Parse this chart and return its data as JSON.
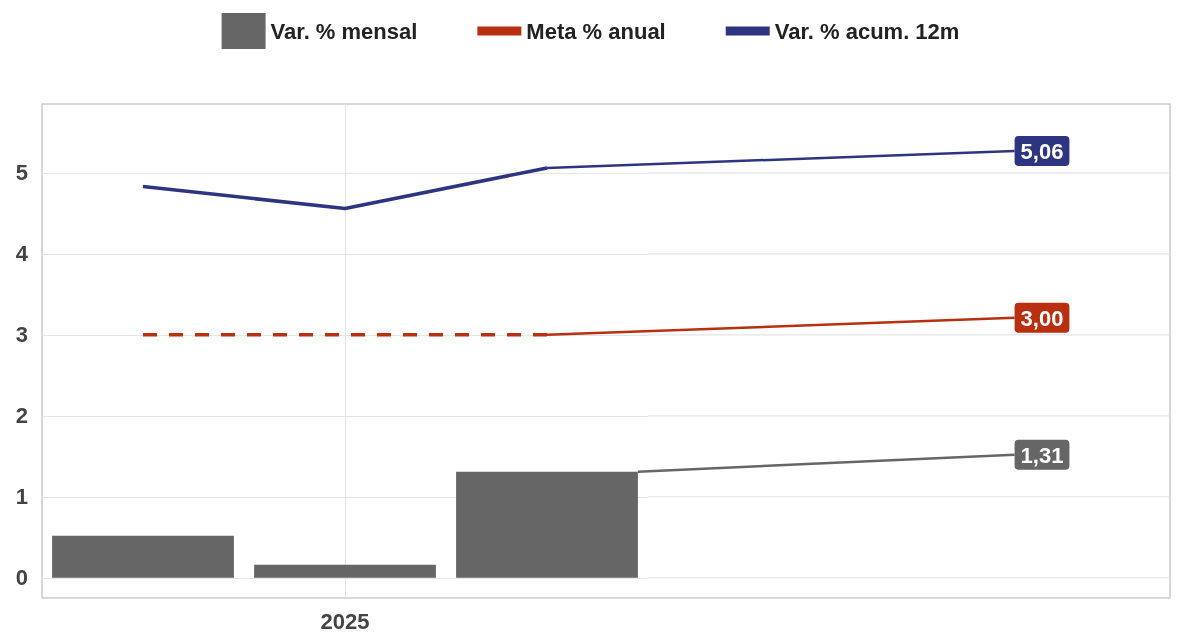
{
  "chart_data": {
    "type": "bar",
    "categories": [
      null,
      "2025",
      null
    ],
    "series": [
      {
        "name": "Var. % mensal",
        "color": "#666666",
        "values": [
          0.52,
          0.16,
          1.31
        ],
        "value_labels": [
          null,
          null,
          "1,31"
        ]
      },
      {
        "name": "Meta % anual",
        "type": "line",
        "color": "#b83010",
        "line_style": "dashed",
        "values": [
          3.0,
          3.0,
          3.0
        ],
        "value_labels": [
          null,
          null,
          "3,00"
        ]
      },
      {
        "name": "Var. % acum. 12m",
        "type": "line",
        "color": "#2e3580",
        "line_style": "solid",
        "values": [
          4.83,
          4.56,
          5.06
        ],
        "value_labels": [
          null,
          null,
          "5,06"
        ]
      }
    ],
    "ylim": [
      -0.25,
      5.85
    ],
    "yticks": [
      0,
      1,
      2,
      3,
      4,
      5
    ],
    "grid": true,
    "legend": "top"
  }
}
